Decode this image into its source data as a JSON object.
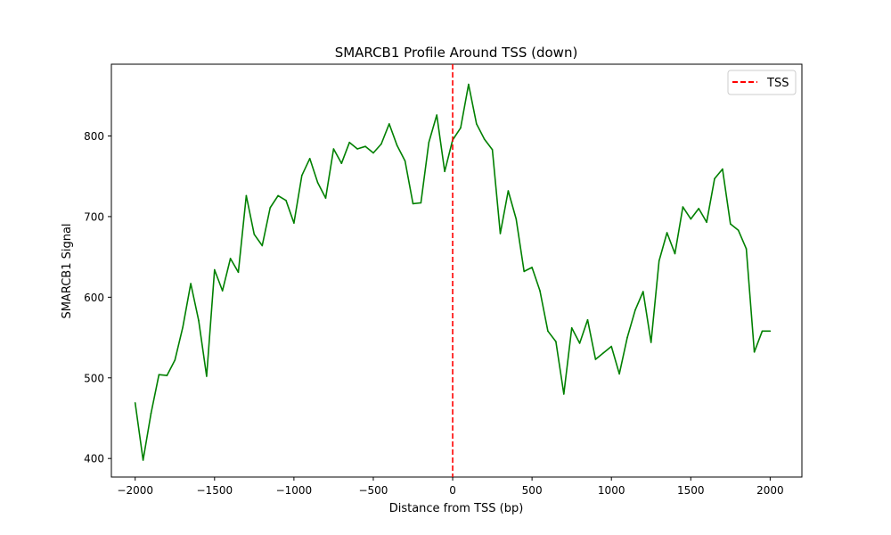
{
  "chart_data": {
    "type": "line",
    "title": "SMARCB1 Profile Around TSS (down)",
    "xlabel": "Distance from TSS (bp)",
    "ylabel": "SMARCB1 Signal",
    "xlim": [
      -2150,
      2200
    ],
    "ylim": [
      377,
      889
    ],
    "xticks": [
      -2000,
      -1500,
      -1000,
      -500,
      0,
      500,
      1000,
      1500,
      2000
    ],
    "xtick_labels": [
      "−2000",
      "−1500",
      "−1000",
      "−500",
      "0",
      "500",
      "1000",
      "1500",
      "2000"
    ],
    "yticks": [
      400,
      500,
      600,
      700,
      800
    ],
    "ytick_labels": [
      "400",
      "500",
      "600",
      "700",
      "800"
    ],
    "grid": false,
    "legend": {
      "position": "top-right",
      "entries": [
        "TSS"
      ]
    },
    "colors": {
      "series": "#008000",
      "tss_line": "#ff0000"
    },
    "annotations": [
      {
        "type": "vline",
        "x": 0,
        "label": "TSS",
        "style": "dashed"
      }
    ],
    "series": [
      {
        "x": [
          -2000,
          -1950,
          -1900,
          -1850,
          -1800,
          -1750,
          -1700,
          -1650,
          -1600,
          -1550,
          -1500,
          -1450,
          -1400,
          -1350,
          -1300,
          -1250,
          -1200,
          -1150,
          -1100,
          -1050,
          -1000,
          -950,
          -900,
          -850,
          -800,
          -750,
          -700,
          -650,
          -600,
          -550,
          -500,
          -450,
          -400,
          -350,
          -300,
          -250,
          -200,
          -150,
          -100,
          -50,
          0,
          50,
          100,
          150,
          200,
          250,
          300,
          350,
          400,
          450,
          500,
          550,
          600,
          650,
          700,
          750,
          800,
          850,
          900,
          950,
          1000,
          1050,
          1100,
          1150,
          1200,
          1250,
          1300,
          1350,
          1400,
          1450,
          1500,
          1550,
          1600,
          1650,
          1700,
          1750,
          1800,
          1850,
          1900,
          1950,
          2000
        ],
        "values": [
          469,
          398,
          456,
          504,
          503,
          522,
          563,
          617,
          571,
          502,
          634,
          608,
          648,
          631,
          726,
          678,
          664,
          711,
          726,
          720,
          692,
          751,
          772,
          742,
          723,
          784,
          766,
          792,
          784,
          787,
          779,
          790,
          815,
          788,
          769,
          716,
          717,
          792,
          826,
          756,
          795,
          810,
          864,
          815,
          796,
          783,
          679,
          732,
          697,
          632,
          637,
          608,
          558,
          545,
          480,
          562,
          543,
          572,
          523,
          531,
          539,
          505,
          550,
          584,
          607,
          544,
          645,
          680,
          654,
          712,
          697,
          710,
          693,
          747,
          759,
          691,
          683,
          660,
          532,
          558,
          558
        ]
      }
    ]
  }
}
